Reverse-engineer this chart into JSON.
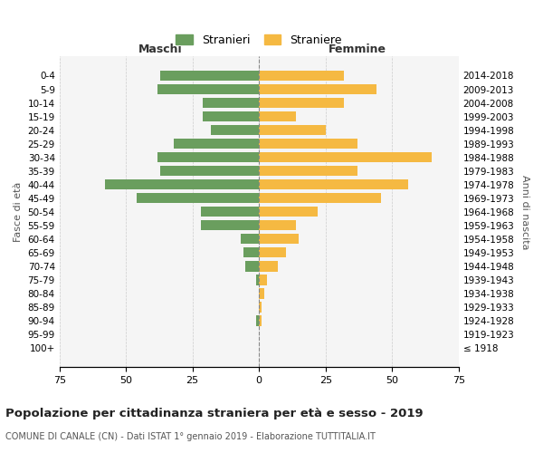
{
  "age_groups": [
    "100+",
    "95-99",
    "90-94",
    "85-89",
    "80-84",
    "75-79",
    "70-74",
    "65-69",
    "60-64",
    "55-59",
    "50-54",
    "45-49",
    "40-44",
    "35-39",
    "30-34",
    "25-29",
    "20-24",
    "15-19",
    "10-14",
    "5-9",
    "0-4"
  ],
  "birth_years": [
    "≤ 1918",
    "1919-1923",
    "1924-1928",
    "1929-1933",
    "1934-1938",
    "1939-1943",
    "1944-1948",
    "1949-1953",
    "1954-1958",
    "1959-1963",
    "1964-1968",
    "1969-1973",
    "1974-1978",
    "1979-1983",
    "1984-1988",
    "1989-1993",
    "1994-1998",
    "1999-2003",
    "2004-2008",
    "2009-2013",
    "2014-2018"
  ],
  "maschi": [
    0,
    0,
    1,
    0,
    0,
    1,
    5,
    6,
    7,
    22,
    22,
    46,
    58,
    37,
    38,
    32,
    18,
    21,
    21,
    38,
    37
  ],
  "femmine": [
    0,
    0,
    1,
    1,
    2,
    3,
    7,
    10,
    15,
    14,
    22,
    46,
    56,
    37,
    65,
    37,
    25,
    14,
    32,
    44,
    32
  ],
  "male_color": "#6a9e5e",
  "female_color": "#f5b942",
  "background_color": "#f5f5f5",
  "grid_color": "#cccccc",
  "title": "Popolazione per cittadinanza straniera per età e sesso - 2019",
  "subtitle": "COMUNE DI CANALE (CN) - Dati ISTAT 1° gennaio 2019 - Elaborazione TUTTITALIA.IT",
  "xlabel_left": "Maschi",
  "xlabel_right": "Femmine",
  "ylabel_left": "Fasce di età",
  "ylabel_right": "Anni di nascita",
  "legend_stranieri": "Stranieri",
  "legend_straniere": "Straniere",
  "xlim": 75,
  "xticks": [
    75,
    50,
    25,
    0,
    25,
    50,
    75
  ]
}
